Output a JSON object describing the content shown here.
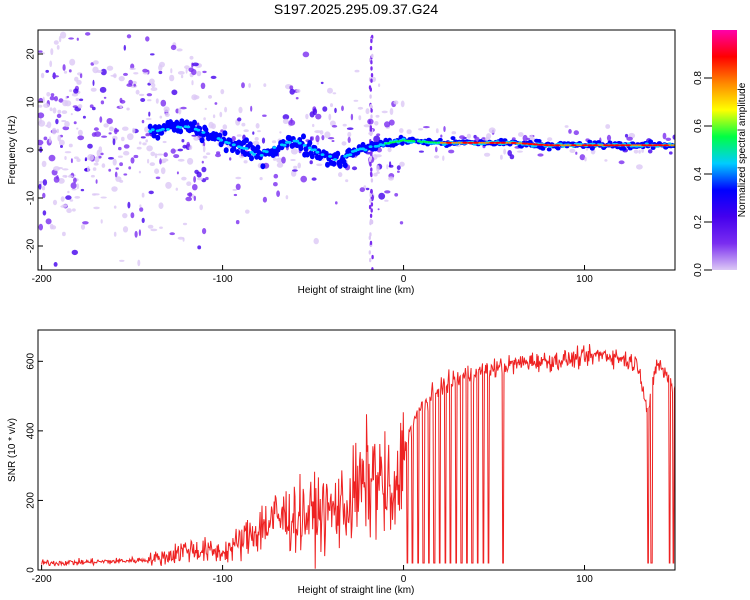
{
  "figure_title": "S197.2025.295.09.37.G24",
  "colors": {
    "snr_line": "#ee2222",
    "colormap": [
      "#ffffff",
      "#dcc8f5",
      "#7a2df0",
      "#4400ee",
      "#0000ff",
      "#00ccff",
      "#00ff44",
      "#ffff00",
      "#ff8800",
      "#ff0000",
      "#ff00aa"
    ]
  },
  "chart_data": [
    {
      "type": "heatmap",
      "xlabel": "Height of straight line (km)",
      "ylabel": "Frequency (Hz)",
      "xlim": [
        -202,
        150
      ],
      "ylim": [
        -25,
        25
      ],
      "x_ticks": [
        -200,
        -100,
        0,
        100
      ],
      "x_tick_labels": [
        "-200",
        "-100",
        "0",
        "100"
      ],
      "y_ticks": [
        20,
        10,
        0,
        -10,
        -20
      ],
      "y_tick_labels": [
        "20",
        "10",
        "0",
        "-10",
        "-20"
      ],
      "grid": false,
      "ridge": {
        "description_points_x": [
          -140,
          -120,
          -100,
          -80,
          -60,
          -45,
          -35,
          -25,
          -15,
          0,
          20,
          40,
          60,
          80,
          100,
          120,
          140,
          150
        ],
        "frequency_hz": [
          4,
          5,
          2,
          -1,
          2,
          -1,
          -2,
          0,
          1,
          2,
          1.5,
          1.5,
          1.5,
          1,
          1,
          1,
          1,
          1
        ]
      },
      "colorbar": {
        "label": "Normalized spectral amplitude",
        "range": [
          0,
          1
        ],
        "ticks": [
          0.0,
          0.2,
          0.4,
          0.6,
          0.8
        ],
        "tick_labels": [
          "0.0",
          "0.2",
          "0.4",
          "0.6",
          "0.8"
        ]
      }
    },
    {
      "type": "line",
      "xlabel": "Height of straight line (km)",
      "ylabel": "SNR (10 * v/v)",
      "xlim": [
        -202,
        150
      ],
      "ylim": [
        0,
        690
      ],
      "x_ticks": [
        -200,
        -100,
        0,
        100
      ],
      "x_tick_labels": [
        "-200",
        "-100",
        "0",
        "100"
      ],
      "y_ticks": [
        0,
        200,
        400,
        600
      ],
      "y_tick_labels": [
        "0",
        "200",
        "400",
        "600"
      ],
      "grid": false,
      "series": [
        {
          "x": [
            -200,
            -180,
            -160,
            -140,
            -130,
            -120,
            -110,
            -100,
            -90,
            -80,
            -70,
            -60,
            -50,
            -40,
            -30,
            -25,
            -20,
            -15,
            -10,
            -5,
            0,
            5,
            10,
            20,
            30,
            40,
            50,
            60,
            70,
            80,
            90,
            100,
            110,
            120,
            130,
            135,
            140,
            145,
            150
          ],
          "values": [
            20,
            22,
            25,
            30,
            40,
            60,
            55,
            50,
            80,
            120,
            150,
            150,
            160,
            170,
            190,
            230,
            250,
            270,
            230,
            180,
            330,
            420,
            470,
            520,
            550,
            570,
            580,
            590,
            600,
            600,
            605,
            610,
            620,
            610,
            590,
            450,
            600,
            560,
            520
          ]
        }
      ],
      "dropouts_x": [
        2,
        5,
        8,
        11,
        14,
        17,
        20,
        23,
        26,
        29,
        32,
        35,
        38,
        41,
        44,
        47,
        55,
        135,
        137,
        147,
        149
      ]
    }
  ]
}
